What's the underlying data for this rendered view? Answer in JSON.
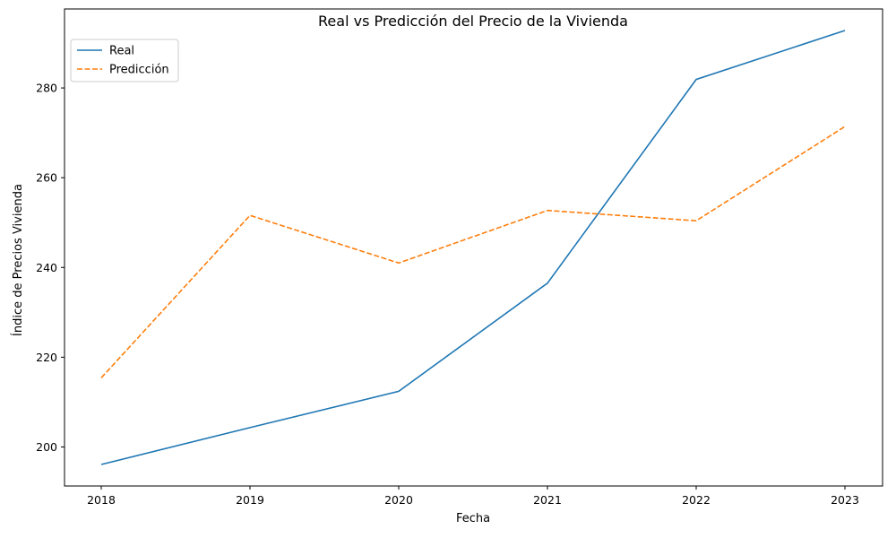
{
  "chart_data": {
    "type": "line",
    "title": "Real vs Predicción del Precio de la Vivienda",
    "xlabel": "Fecha",
    "ylabel": "Índice de Precios Vivienda",
    "x": [
      "2018",
      "2019",
      "2020",
      "2021",
      "2022",
      "2023"
    ],
    "yticks": [
      200,
      220,
      240,
      260,
      280
    ],
    "ylim": [
      191.3,
      297.6
    ],
    "grid": false,
    "legend_position": "top-left",
    "series": [
      {
        "name": "Real",
        "values": [
          196.1,
          204.3,
          212.4,
          236.5,
          281.9,
          292.8
        ],
        "color": "#1f77b4",
        "style": "solid"
      },
      {
        "name": "Predicción",
        "values": [
          215.4,
          251.6,
          241.0,
          252.7,
          250.4,
          271.4
        ],
        "color": "#ff7f0e",
        "style": "dashed"
      }
    ]
  }
}
